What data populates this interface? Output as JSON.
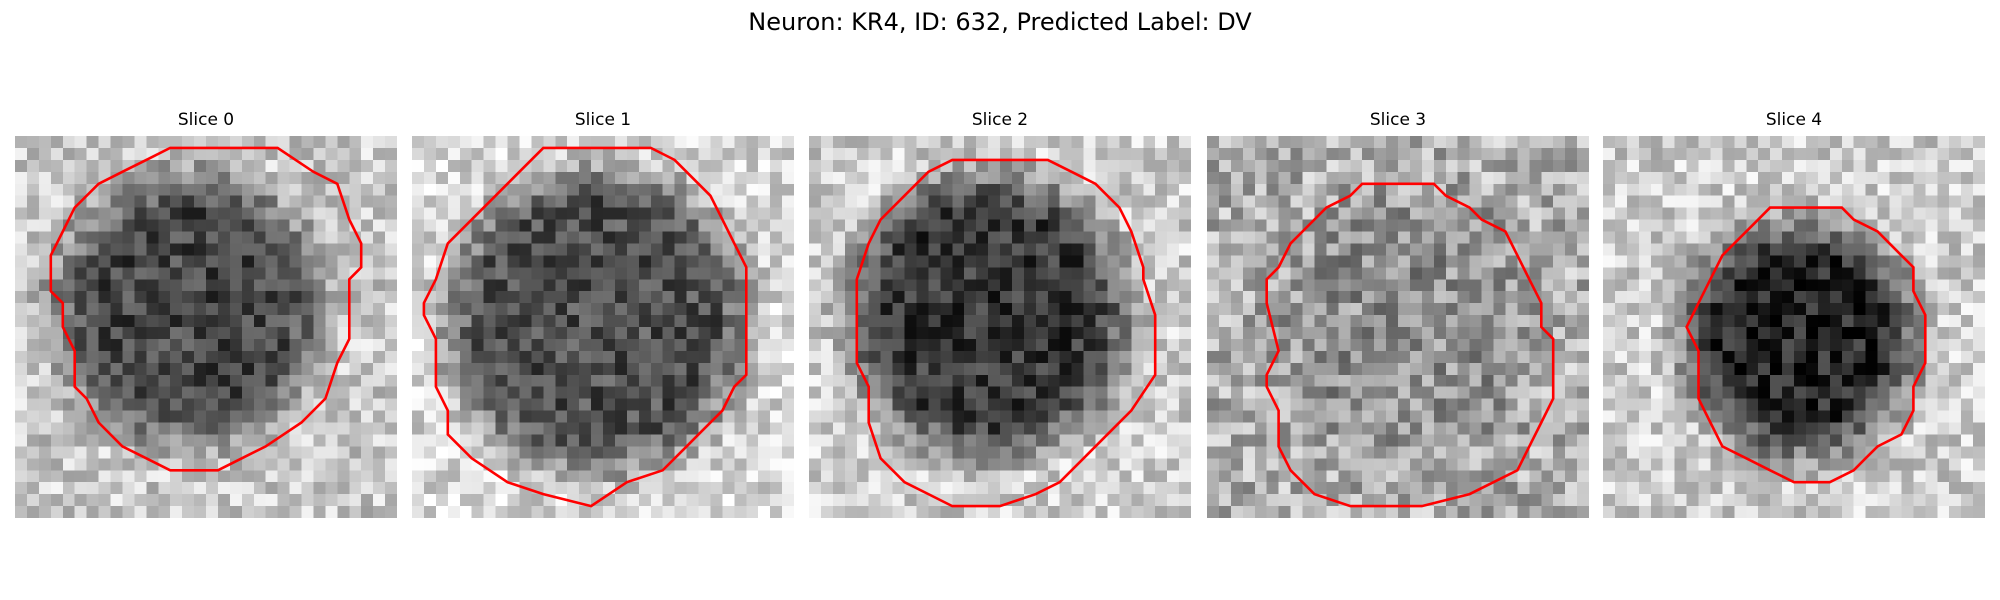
{
  "figure": {
    "title": "Neuron: KR4, ID: 632, Predicted Label: DV"
  },
  "panels": [
    {
      "title": "Slice 0"
    },
    {
      "title": "Slice 1"
    },
    {
      "title": "Slice 2"
    },
    {
      "title": "Slice 3"
    },
    {
      "title": "Slice 4"
    }
  ],
  "colors": {
    "contour": "#ff0000",
    "background": "#ffffff"
  }
}
